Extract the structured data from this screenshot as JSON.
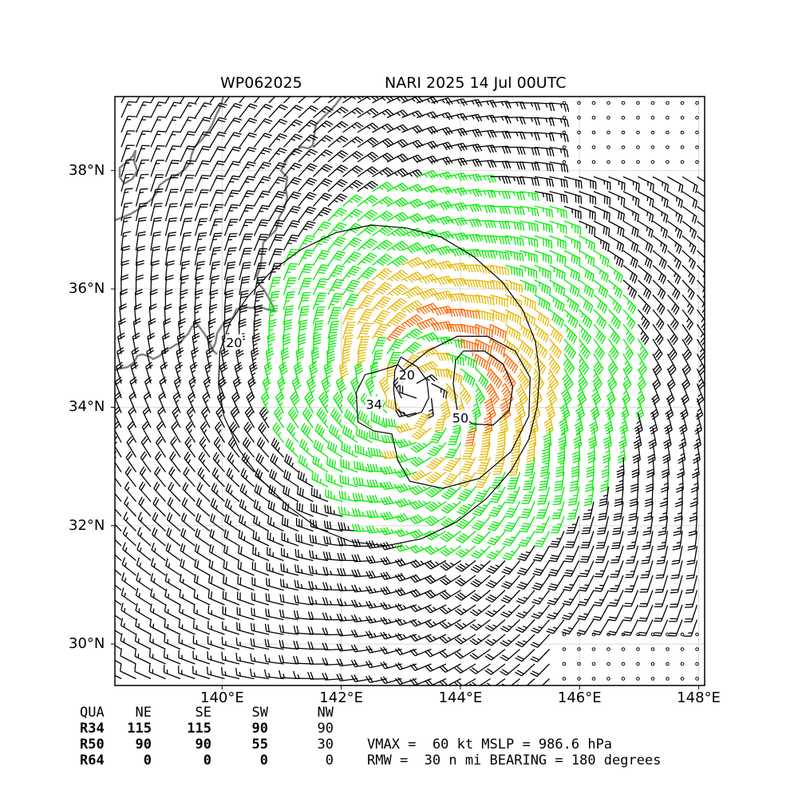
{
  "header": {
    "storm_id": "WP062025",
    "storm_time": "NARI 2025 14 Jul 00UTC"
  },
  "map": {
    "lon_range": [
      138.2,
      148.1
    ],
    "lat_range": [
      29.3,
      39.25
    ],
    "lat_ticks": [
      {
        "value": 30,
        "label": "30°N"
      },
      {
        "value": 32,
        "label": "32°N"
      },
      {
        "value": 34,
        "label": "34°N"
      },
      {
        "value": 36,
        "label": "36°N"
      },
      {
        "value": 38,
        "label": "38°N"
      }
    ],
    "lon_ticks": [
      {
        "value": 140,
        "label": "140°E"
      },
      {
        "value": 142,
        "label": "142°E"
      },
      {
        "value": 144,
        "label": "144°E"
      },
      {
        "value": 146,
        "label": "146°E"
      },
      {
        "value": 148,
        "label": "148°E"
      }
    ],
    "storm_center": {
      "lon": 143.3,
      "lat": 34.2
    },
    "coastline_color": "#808080",
    "contours": [
      {
        "label": "20",
        "points": [
          [
            139.96,
            34.94
          ],
          [
            140.13,
            35.43
          ],
          [
            140.43,
            35.87
          ],
          [
            140.83,
            36.3
          ],
          [
            141.33,
            36.67
          ],
          [
            141.91,
            36.95
          ],
          [
            142.5,
            37.08
          ],
          [
            143.09,
            37.03
          ],
          [
            143.67,
            36.88
          ],
          [
            144.22,
            36.55
          ],
          [
            144.7,
            36.12
          ],
          [
            145.05,
            35.64
          ],
          [
            145.26,
            35.11
          ],
          [
            145.33,
            34.56
          ],
          [
            145.29,
            34.02
          ],
          [
            145.15,
            33.46
          ],
          [
            144.85,
            32.93
          ],
          [
            144.44,
            32.46
          ],
          [
            143.93,
            32.06
          ],
          [
            143.35,
            31.78
          ],
          [
            142.75,
            31.66
          ],
          [
            142.17,
            31.73
          ],
          [
            141.62,
            31.95
          ],
          [
            141.13,
            32.31
          ],
          [
            140.66,
            32.77
          ],
          [
            140.28,
            33.29
          ],
          [
            140.03,
            33.85
          ],
          [
            139.94,
            34.38
          ],
          [
            139.96,
            34.94
          ]
        ],
        "label_at": [
          140.2,
          35.1
        ]
      },
      {
        "label": "20",
        "points": [
          [
            143.0,
            34.85
          ],
          [
            143.28,
            34.68
          ],
          [
            143.44,
            34.45
          ],
          [
            143.47,
            34.16
          ],
          [
            143.35,
            33.92
          ],
          [
            143.12,
            33.84
          ],
          [
            142.92,
            33.98
          ],
          [
            142.88,
            34.3
          ],
          [
            142.9,
            34.62
          ],
          [
            143.0,
            34.85
          ]
        ],
        "label_at": [
          143.1,
          34.55
        ]
      },
      {
        "label": "34",
        "points": [
          [
            142.75,
            34.65
          ],
          [
            142.95,
            34.72
          ],
          [
            143.05,
            34.62
          ],
          [
            143.45,
            34.95
          ],
          [
            143.95,
            35.2
          ],
          [
            144.45,
            35.2
          ],
          [
            144.92,
            34.95
          ],
          [
            145.17,
            34.5
          ],
          [
            145.15,
            33.85
          ],
          [
            144.85,
            33.25
          ],
          [
            144.32,
            32.8
          ],
          [
            143.7,
            32.63
          ],
          [
            143.15,
            32.75
          ],
          [
            142.95,
            33.1
          ],
          [
            142.85,
            33.55
          ],
          [
            142.55,
            33.6
          ],
          [
            142.28,
            33.75
          ],
          [
            142.25,
            34.25
          ],
          [
            142.4,
            34.55
          ],
          [
            142.75,
            34.65
          ]
        ],
        "label_at": [
          142.55,
          34.05
        ]
      },
      {
        "label": "50",
        "points": [
          [
            144.05,
            34.95
          ],
          [
            144.4,
            34.95
          ],
          [
            144.72,
            34.73
          ],
          [
            144.88,
            34.35
          ],
          [
            144.82,
            33.95
          ],
          [
            144.55,
            33.7
          ],
          [
            144.2,
            33.72
          ],
          [
            143.95,
            33.92
          ],
          [
            143.88,
            34.4
          ],
          [
            143.92,
            34.8
          ],
          [
            144.05,
            34.95
          ]
        ],
        "label_at": [
          144.0,
          33.82
        ]
      }
    ]
  },
  "quadrant_table": {
    "header": [
      "QUA",
      "NE",
      "SE",
      "SW",
      "NW"
    ],
    "rows": [
      {
        "label": "R34",
        "values": [
          "115",
          "115",
          "90",
          "90"
        ]
      },
      {
        "label": "R50",
        "values": [
          "90",
          "90",
          "55",
          "30"
        ]
      },
      {
        "label": "R64",
        "values": [
          "0",
          "0",
          "0",
          "0"
        ]
      }
    ]
  },
  "summary": {
    "line1": "VMAX =  60 kt MSLP = 986.6 hPa",
    "line2": "RMW =  30 n mi BEARING = 180 degrees"
  },
  "colors": {
    "barb_calm_lt34": "#000000",
    "barb_34_to_50": "#00ee00",
    "barb_50_to_64": "#e6b800",
    "barb_ge64": "#ff6600",
    "grid": "#d9d9d9"
  }
}
